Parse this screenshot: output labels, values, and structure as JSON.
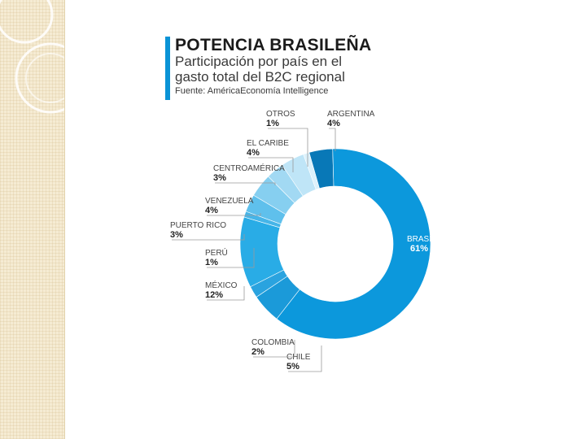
{
  "header": {
    "title": "POTENCIA BRASILEÑA",
    "subtitle": "Participación por país en el gasto total del B2C regional",
    "source": "Fuente: AméricaEconomía Intelligence"
  },
  "colors": {
    "accent": "#0a93d6",
    "sidebar": "#f5ebd3"
  },
  "chart_data": {
    "type": "pie",
    "donut": true,
    "title": "POTENCIA BRASILEÑA",
    "subtitle": "Participación por país en el gasto total del B2C regional",
    "slices": [
      {
        "label": "ARGENTINA",
        "value": 4,
        "display": "4%",
        "color": "#0878b7"
      },
      {
        "label": "BRASIL",
        "value": 61,
        "display": "61%",
        "color": "#0c98dc"
      },
      {
        "label": "CHILE",
        "value": 5,
        "display": "5%",
        "color": "#1b9ad9"
      },
      {
        "label": "COLOMBIA",
        "value": 2,
        "display": "2%",
        "color": "#2aa3df"
      },
      {
        "label": "MÉXICO",
        "value": 12,
        "display": "12%",
        "color": "#29ace6"
      },
      {
        "label": "PERÚ",
        "value": 1,
        "display": "1%",
        "color": "#46b5e8"
      },
      {
        "label": "PUERTO RICO",
        "value": 3,
        "display": "3%",
        "color": "#5fc0ec"
      },
      {
        "label": "VENEZUELA",
        "value": 4,
        "display": "4%",
        "color": "#86cff0"
      },
      {
        "label": "CENTROAMÉRICA",
        "value": 3,
        "display": "3%",
        "color": "#a2d9f3"
      },
      {
        "label": "EL CARIBE",
        "value": 4,
        "display": "4%",
        "color": "#bfe5f7"
      },
      {
        "label": "OTROS",
        "value": 1,
        "display": "1%",
        "color": "#dcf1fb"
      }
    ]
  }
}
